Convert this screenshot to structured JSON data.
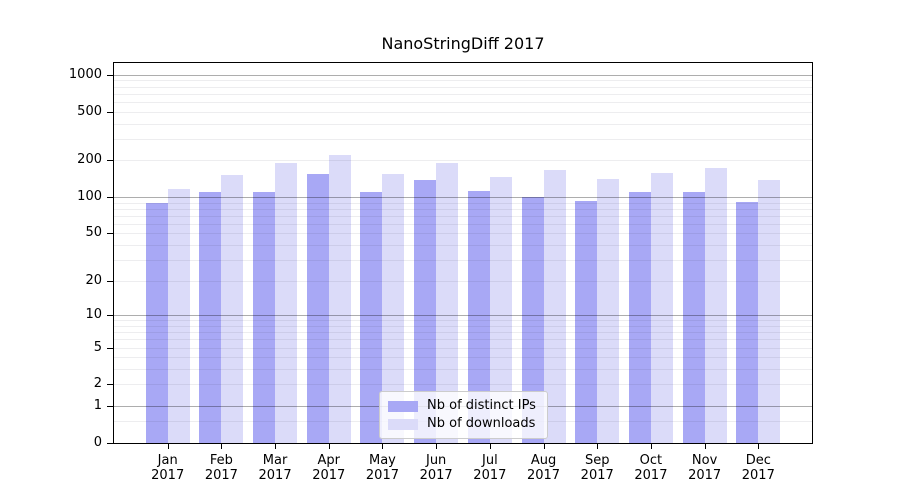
{
  "chart_data": {
    "type": "bar",
    "title": "NanoStringDiff 2017",
    "year_label": "2017",
    "categories": [
      "Jan",
      "Feb",
      "Mar",
      "Apr",
      "May",
      "Jun",
      "Jul",
      "Aug",
      "Sep",
      "Oct",
      "Nov",
      "Dec"
    ],
    "series": [
      {
        "name": "Nb of distinct IPs",
        "color": "#a8a8f5",
        "values": [
          89,
          111,
          111,
          155,
          111,
          137,
          112,
          100,
          93,
          110,
          111,
          91
        ]
      },
      {
        "name": "Nb of downloads",
        "color": "#dbdbf9",
        "values": [
          116,
          153,
          191,
          222,
          154,
          189,
          147,
          167,
          140,
          157,
          175,
          139
        ]
      }
    ],
    "yscale": "log1p",
    "ylim": [
      0,
      1250
    ],
    "yticks": [
      0,
      1,
      2,
      5,
      10,
      20,
      50,
      100,
      200,
      500,
      1000
    ],
    "grid": true,
    "gridline_minor_values": [
      0.5,
      2,
      3,
      4,
      5,
      6,
      7,
      8,
      9,
      20,
      30,
      40,
      50,
      60,
      70,
      80,
      90,
      200,
      300,
      400,
      500,
      600,
      700,
      800,
      900
    ],
    "gridline_major_values": [
      1,
      10,
      100,
      1000
    ],
    "legend_position": "lower center",
    "xlabel": "",
    "ylabel": ""
  }
}
